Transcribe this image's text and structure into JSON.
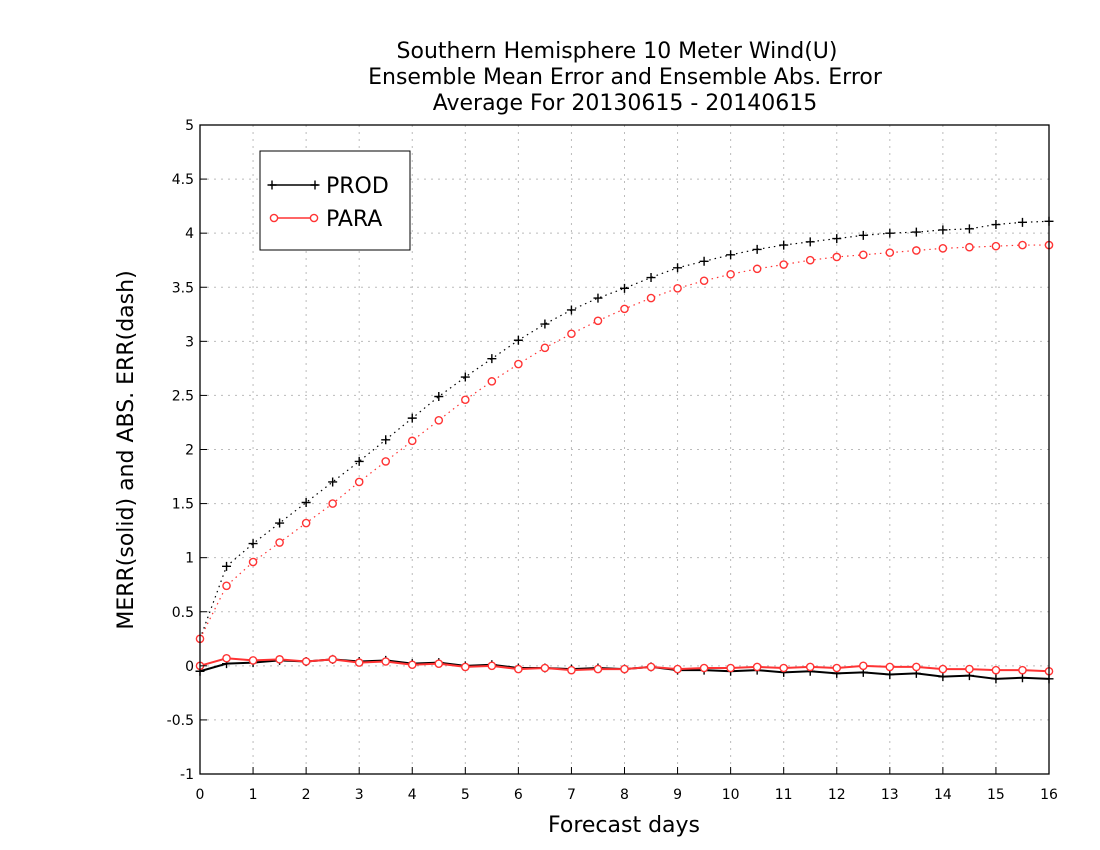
{
  "chart_data": {
    "type": "line",
    "title_lines": [
      "Southern Hemisphere 10 Meter Wind(U)",
      "Ensemble Mean Error and Ensemble Abs. Error",
      "Average For 20130615 - 20140615"
    ],
    "xlabel": "Forecast days",
    "ylabel": "MERR(solid) and ABS. ERR(dash)",
    "xlim": [
      0,
      16
    ],
    "ylim": [
      -1,
      5
    ],
    "x_ticks": [
      0,
      1,
      2,
      3,
      4,
      5,
      6,
      7,
      8,
      9,
      10,
      11,
      12,
      13,
      14,
      15,
      16
    ],
    "y_ticks": [
      -1,
      -0.5,
      0,
      0.5,
      1,
      1.5,
      2,
      2.5,
      3,
      3.5,
      4,
      4.5,
      5
    ],
    "grid": true,
    "legend_position": "top-left",
    "x": [
      0,
      0.5,
      1,
      1.5,
      2,
      2.5,
      3,
      3.5,
      4,
      4.5,
      5,
      5.5,
      6,
      6.5,
      7,
      7.5,
      8,
      8.5,
      9,
      9.5,
      10,
      10.5,
      11,
      11.5,
      12,
      12.5,
      13,
      13.5,
      14,
      14.5,
      15,
      15.5,
      16
    ],
    "series": [
      {
        "name": "PROD",
        "color": "#000000",
        "marker": "plus",
        "merr": [
          -0.05,
          0.02,
          0.03,
          0.05,
          0.04,
          0.06,
          0.04,
          0.05,
          0.02,
          0.03,
          0.0,
          0.01,
          -0.02,
          -0.02,
          -0.03,
          -0.02,
          -0.03,
          -0.01,
          -0.04,
          -0.04,
          -0.05,
          -0.04,
          -0.06,
          -0.05,
          -0.07,
          -0.06,
          -0.08,
          -0.07,
          -0.1,
          -0.09,
          -0.12,
          -0.11,
          -0.12
        ],
        "abs_err": [
          null,
          0.92,
          1.13,
          1.32,
          1.51,
          1.7,
          1.89,
          2.09,
          2.29,
          2.49,
          2.67,
          2.84,
          3.01,
          3.16,
          3.29,
          3.4,
          3.49,
          3.59,
          3.68,
          3.74,
          3.8,
          3.85,
          3.89,
          3.92,
          3.95,
          3.98,
          4.0,
          4.01,
          4.03,
          4.04,
          4.08,
          4.1,
          4.11
        ]
      },
      {
        "name": "PARA",
        "color": "#ff3333",
        "marker": "circle",
        "merr": [
          0.0,
          0.07,
          0.05,
          0.06,
          0.04,
          0.06,
          0.03,
          0.04,
          0.01,
          0.02,
          -0.01,
          0.0,
          -0.03,
          -0.02,
          -0.04,
          -0.03,
          -0.03,
          -0.01,
          -0.03,
          -0.02,
          -0.02,
          -0.01,
          -0.02,
          -0.01,
          -0.02,
          0.0,
          -0.01,
          -0.01,
          -0.03,
          -0.03,
          -0.04,
          -0.04,
          -0.05
        ],
        "abs_err": [
          0.25,
          0.74,
          0.96,
          1.14,
          1.32,
          1.5,
          1.7,
          1.89,
          2.08,
          2.27,
          2.46,
          2.63,
          2.79,
          2.94,
          3.07,
          3.19,
          3.3,
          3.4,
          3.49,
          3.56,
          3.62,
          3.67,
          3.71,
          3.75,
          3.78,
          3.8,
          3.82,
          3.84,
          3.86,
          3.87,
          3.88,
          3.89,
          3.89
        ]
      }
    ]
  }
}
